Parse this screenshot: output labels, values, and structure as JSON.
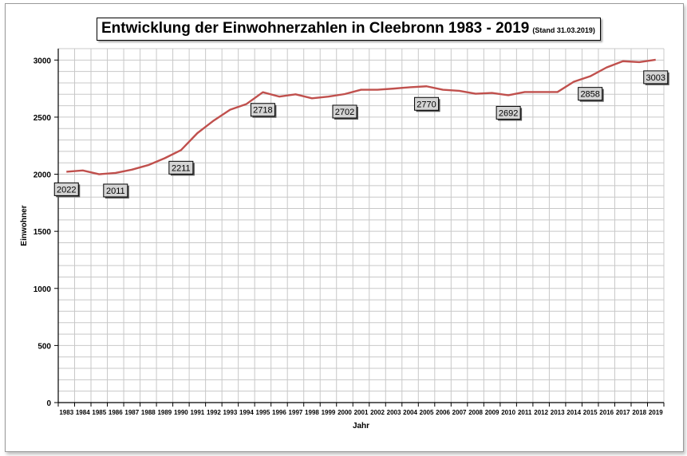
{
  "chart_data": {
    "type": "line",
    "title": "Entwicklung der Einwohnerzahlen in Cleebronn 1983 - 2019",
    "subtitle": "(Stand 31.03.2019)",
    "xlabel": "Jahr",
    "ylabel": "Einwohner",
    "ylim": [
      0,
      3000
    ],
    "yticks": [
      0,
      500,
      1000,
      1500,
      2000,
      2500,
      3000
    ],
    "grid": true,
    "legend": "none",
    "line_color": "#c0504d",
    "x": [
      "1983",
      "1984",
      "1985",
      "1986",
      "1987",
      "1988",
      "1989",
      "1990",
      "1991",
      "1992",
      "1993",
      "1994",
      "1995",
      "1996",
      "1997",
      "1998",
      "1999",
      "2000",
      "2001",
      "2002",
      "2003",
      "2004",
      "2005",
      "2006",
      "2007",
      "2008",
      "2009",
      "2010",
      "2011",
      "2012",
      "2013",
      "2014",
      "2015",
      "2016",
      "2017",
      "2018",
      "2019"
    ],
    "series": [
      {
        "values": [
          2022,
          2033,
          2000,
          2011,
          2040,
          2080,
          2140,
          2211,
          2360,
          2470,
          2565,
          2615,
          2718,
          2680,
          2700,
          2665,
          2680,
          2702,
          2740,
          2740,
          2750,
          2762,
          2770,
          2740,
          2730,
          2705,
          2712,
          2692,
          2720,
          2720,
          2720,
          2810,
          2858,
          2935,
          2990,
          2982,
          3003
        ]
      }
    ],
    "data_labels": [
      {
        "year": "1983",
        "text": "2022"
      },
      {
        "year": "1986",
        "text": "2011"
      },
      {
        "year": "1990",
        "text": "2211"
      },
      {
        "year": "1995",
        "text": "2718"
      },
      {
        "year": "2000",
        "text": "2702"
      },
      {
        "year": "2005",
        "text": "2770"
      },
      {
        "year": "2010",
        "text": "2692"
      },
      {
        "year": "2015",
        "text": "2858"
      },
      {
        "year": "2019",
        "text": "3003"
      }
    ]
  }
}
